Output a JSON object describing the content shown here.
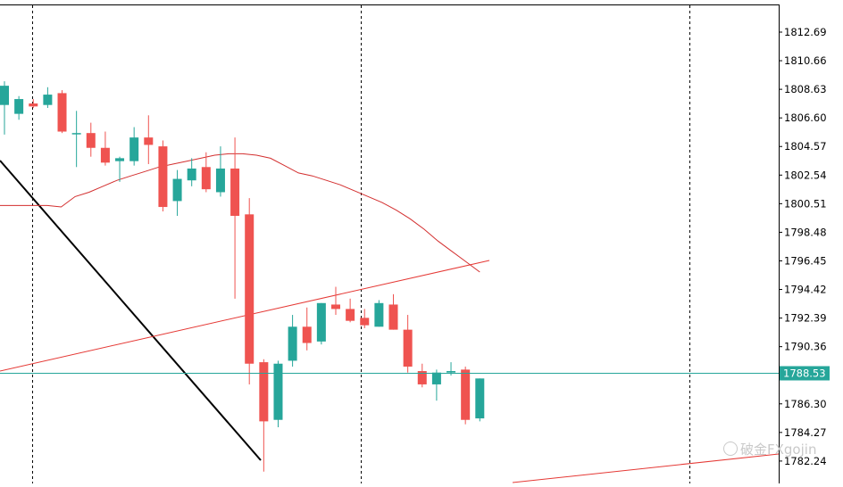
{
  "chart_data": {
    "type": "candlestick",
    "title": "",
    "xlabel": "",
    "ylabel": "",
    "ylim": [
      1781.6,
      1814.3
    ],
    "y_ticks": [
      "1812.69",
      "1810.66",
      "1808.63",
      "1806.60",
      "1804.57",
      "1802.54",
      "1800.51",
      "1798.48",
      "1796.45",
      "1794.42",
      "1792.39",
      "1790.36",
      "1788.53",
      "1786.30",
      "1784.27",
      "1782.24"
    ],
    "current_price": 1788.53,
    "current_price_label": "1788.53",
    "grid": "vertical dotted separators",
    "colors": {
      "bull": "#26a69a",
      "bear": "#ef5350",
      "ma": "#d32f2f",
      "trend_black": "#000000",
      "trend_red": "#e53935",
      "price_line": "#26a69a"
    },
    "candles": [
      {
        "o": 1807.2,
        "h": 1808.8,
        "l": 1805.2,
        "c": 1808.5
      },
      {
        "o": 1806.6,
        "h": 1807.8,
        "l": 1806.2,
        "c": 1807.6
      },
      {
        "o": 1807.3,
        "h": 1807.6,
        "l": 1807.0,
        "c": 1807.1
      },
      {
        "o": 1807.2,
        "h": 1808.4,
        "l": 1807.0,
        "c": 1807.9
      },
      {
        "o": 1808.0,
        "h": 1808.2,
        "l": 1805.3,
        "c": 1805.4
      },
      {
        "o": 1805.3,
        "h": 1806.8,
        "l": 1803.0,
        "c": 1805.3
      },
      {
        "o": 1805.3,
        "h": 1806.0,
        "l": 1803.7,
        "c": 1804.3
      },
      {
        "o": 1804.3,
        "h": 1805.4,
        "l": 1803.1,
        "c": 1803.3
      },
      {
        "o": 1803.4,
        "h": 1803.7,
        "l": 1802.0,
        "c": 1803.6
      },
      {
        "o": 1803.4,
        "h": 1805.7,
        "l": 1803.1,
        "c": 1805.0
      },
      {
        "o": 1805.0,
        "h": 1806.5,
        "l": 1803.2,
        "c": 1804.5
      },
      {
        "o": 1804.4,
        "h": 1804.8,
        "l": 1800.0,
        "c": 1800.3
      },
      {
        "o": 1800.7,
        "h": 1802.8,
        "l": 1799.7,
        "c": 1802.2
      },
      {
        "o": 1802.1,
        "h": 1803.6,
        "l": 1801.7,
        "c": 1802.9
      },
      {
        "o": 1803.0,
        "h": 1804.0,
        "l": 1801.3,
        "c": 1801.5
      },
      {
        "o": 1801.3,
        "h": 1804.4,
        "l": 1801.0,
        "c": 1802.9
      },
      {
        "o": 1802.9,
        "h": 1805.0,
        "l": 1794.1,
        "c": 1799.7
      },
      {
        "o": 1799.8,
        "h": 1800.9,
        "l": 1788.3,
        "c": 1789.7
      },
      {
        "o": 1789.8,
        "h": 1790.0,
        "l": 1782.4,
        "c": 1785.8
      },
      {
        "o": 1785.9,
        "h": 1789.9,
        "l": 1785.4,
        "c": 1789.7
      },
      {
        "o": 1789.9,
        "h": 1793.0,
        "l": 1789.5,
        "c": 1792.2
      },
      {
        "o": 1792.2,
        "h": 1793.5,
        "l": 1790.6,
        "c": 1791.1
      },
      {
        "o": 1791.2,
        "h": 1793.8,
        "l": 1791.0,
        "c": 1793.8
      },
      {
        "o": 1793.7,
        "h": 1794.9,
        "l": 1793.0,
        "c": 1793.4
      },
      {
        "o": 1793.4,
        "h": 1794.1,
        "l": 1792.5,
        "c": 1792.6
      },
      {
        "o": 1792.8,
        "h": 1793.4,
        "l": 1792.1,
        "c": 1792.3
      },
      {
        "o": 1792.2,
        "h": 1794.0,
        "l": 1792.2,
        "c": 1793.8
      },
      {
        "o": 1793.7,
        "h": 1794.4,
        "l": 1792.0,
        "c": 1792.0
      },
      {
        "o": 1792.0,
        "h": 1793.0,
        "l": 1789.1,
        "c": 1789.5
      },
      {
        "o": 1789.2,
        "h": 1789.7,
        "l": 1788.1,
        "c": 1788.3
      },
      {
        "o": 1788.3,
        "h": 1789.3,
        "l": 1787.2,
        "c": 1789.1
      },
      {
        "o": 1789.1,
        "h": 1789.8,
        "l": 1788.9,
        "c": 1789.2
      },
      {
        "o": 1789.3,
        "h": 1789.5,
        "l": 1785.6,
        "c": 1785.9
      },
      {
        "o": 1786.0,
        "h": 1788.7,
        "l": 1785.8,
        "c": 1788.7
      }
    ],
    "moving_average": [
      1800.4,
      1800.4,
      1800.3,
      1801.0,
      1801.3,
      1801.7,
      1802.1,
      1802.4,
      1802.7,
      1803.0,
      1803.2,
      1803.4,
      1803.6,
      1803.8,
      1803.9,
      1803.9,
      1803.8,
      1803.6,
      1803.1,
      1802.6,
      1802.4,
      1802.1,
      1801.8,
      1801.4,
      1801.0,
      1800.6,
      1800.1,
      1799.5,
      1798.8,
      1798.0,
      1797.3,
      1796.6,
      1795.9
    ]
  }
}
